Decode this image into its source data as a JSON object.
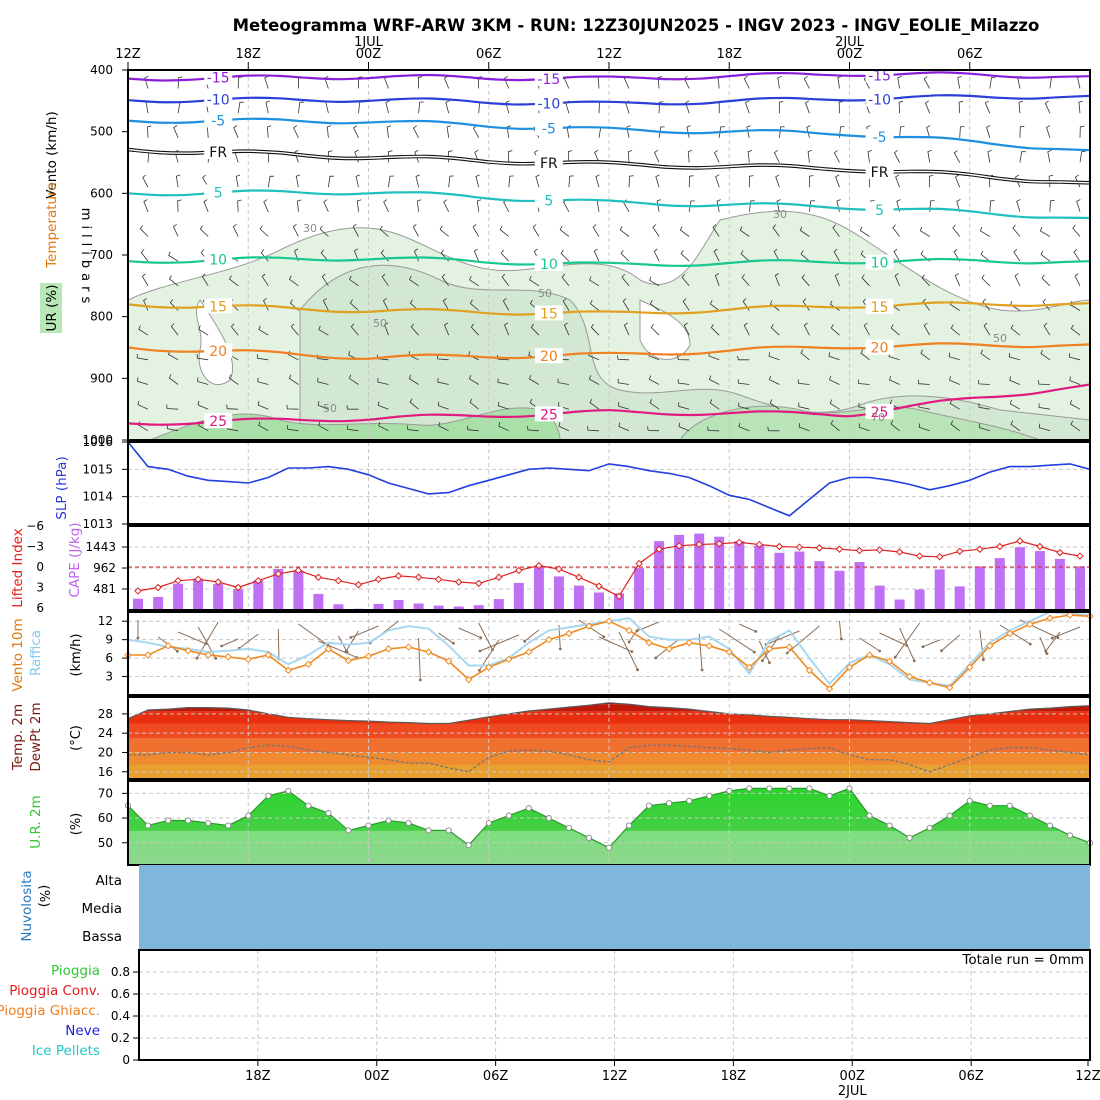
{
  "title": "Meteogramma WRF-ARW 3KM - RUN: 12Z30JUN2025 - INGV 2023 - INGV_EOLIE_Milazzo",
  "top_axis": {
    "ticks": [
      {
        "label": "12Z",
        "hour": 0
      },
      {
        "label": "18Z",
        "hour": 6
      },
      {
        "label": "00Z",
        "hour": 12,
        "date": "1JUL"
      },
      {
        "label": "06Z",
        "hour": 18
      },
      {
        "label": "12Z",
        "hour": 24
      },
      {
        "label": "18Z",
        "hour": 30
      },
      {
        "label": "00Z",
        "hour": 36,
        "date": "2JUL"
      },
      {
        "label": "06Z",
        "hour": 42
      }
    ]
  },
  "bottom_axis": {
    "ticks": [
      {
        "label": "18Z",
        "hour": 6
      },
      {
        "label": "00Z",
        "hour": 12
      },
      {
        "label": "06Z",
        "hour": 18
      },
      {
        "label": "12Z",
        "hour": 24
      },
      {
        "label": "18Z",
        "hour": 30
      },
      {
        "label": "00Z",
        "hour": 36,
        "date": "2JUL"
      },
      {
        "label": "06Z",
        "hour": 42
      },
      {
        "label": "12Z",
        "hour": 48
      }
    ]
  },
  "chart_data": [
    {
      "type": "heatmap",
      "panel": "upper-air",
      "ylabels": [
        "Vento (km/h)",
        "Temperatura",
        "UR (%)"
      ],
      "yaxis_label": "millibars",
      "yticks": [
        400,
        500,
        600,
        700,
        800,
        900,
        1000
      ],
      "ylim": [
        1000,
        400
      ],
      "xlim": [
        0,
        48
      ],
      "isotherm_labels": [
        "-15",
        "-10",
        "-5",
        "FR",
        "5",
        "10",
        "15",
        "20",
        "25"
      ],
      "isotherms": [
        {
          "label": "-15",
          "color": "#8a1ed8",
          "p": [
            [
              0,
              414
            ],
            [
              12,
              411
            ],
            [
              24,
              414
            ],
            [
              36,
              406
            ],
            [
              48,
              410
            ]
          ]
        },
        {
          "label": "-10",
          "color": "#2a3fd6",
          "p": [
            [
              0,
              449
            ],
            [
              12,
              448
            ],
            [
              24,
              455
            ],
            [
              36,
              446
            ],
            [
              48,
              442
            ]
          ]
        },
        {
          "label": "-5",
          "color": "#1e90e0",
          "p": [
            [
              0,
              482
            ],
            [
              12,
              483
            ],
            [
              24,
              497
            ],
            [
              36,
              503
            ],
            [
              48,
              530
            ]
          ]
        },
        {
          "label": "FR",
          "color": "#111111",
          "p": [
            [
              0,
              529
            ],
            [
              12,
              541
            ],
            [
              24,
              553
            ],
            [
              36,
              560
            ],
            [
              48,
              583
            ]
          ]
        },
        {
          "label": "5",
          "color": "#20c0c0",
          "p": [
            [
              0,
              600
            ],
            [
              12,
              598
            ],
            [
              24,
              615
            ],
            [
              36,
              622
            ],
            [
              48,
              640
            ]
          ]
        },
        {
          "label": "10",
          "color": "#18c890",
          "p": [
            [
              0,
              710
            ],
            [
              12,
              705
            ],
            [
              24,
              716
            ],
            [
              36,
              710
            ],
            [
              48,
              710
            ]
          ]
        },
        {
          "label": "15",
          "color": "#e0a020",
          "p": [
            [
              0,
              780
            ],
            [
              12,
              790
            ],
            [
              24,
              795
            ],
            [
              36,
              782
            ],
            [
              48,
              778
            ]
          ]
        },
        {
          "label": "20",
          "color": "#f08020",
          "p": [
            [
              0,
              850
            ],
            [
              12,
              866
            ],
            [
              24,
              862
            ],
            [
              36,
              848
            ],
            [
              48,
              845
            ]
          ]
        },
        {
          "label": "25",
          "color": "#e01a80",
          "p": [
            [
              0,
              973
            ],
            [
              12,
              965
            ],
            [
              24,
              955
            ],
            [
              36,
              958
            ],
            [
              48,
              910
            ]
          ]
        }
      ],
      "rh_contours": [
        "30",
        "50",
        "70"
      ]
    },
    {
      "type": "line",
      "panel": "slp",
      "ylabel": "SLP (hPa)",
      "yticks": [
        1013,
        1014,
        1015,
        1016
      ],
      "ylim": [
        1013,
        1016
      ],
      "x": [
        0,
        1,
        2,
        3,
        4,
        5,
        6,
        7,
        8,
        9,
        10,
        11,
        12,
        13,
        14,
        15,
        16,
        17,
        18,
        19,
        20,
        21,
        22,
        23,
        24,
        25,
        26,
        27,
        28,
        29,
        30,
        31,
        32,
        33,
        34,
        35,
        36,
        37,
        38,
        39,
        40,
        41,
        42,
        43,
        44,
        45,
        46,
        47,
        48
      ],
      "series": [
        {
          "color": "#2040e0",
          "values": [
            1016,
            1015.1,
            1015,
            1014.75,
            1014.6,
            1014.55,
            1014.5,
            1014.7,
            1015.05,
            1015.05,
            1015.1,
            1015.0,
            1014.8,
            1014.5,
            1014.3,
            1014.1,
            1014.15,
            1014.4,
            1014.6,
            1014.8,
            1015.0,
            1015.05,
            1015.0,
            1014.95,
            1015.2,
            1015.1,
            1014.95,
            1014.85,
            1014.7,
            1014.4,
            1014.05,
            1013.9,
            1013.6,
            1013.3,
            1013.9,
            1014.5,
            1014.7,
            1014.7,
            1014.6,
            1014.45,
            1014.25,
            1014.4,
            1014.6,
            1014.9,
            1015.1,
            1015.1,
            1015.15,
            1015.2,
            1015.0
          ]
        }
      ]
    },
    {
      "type": "bar",
      "panel": "cape-li",
      "ylabels": [
        "Lifted Index",
        "CAPE (J/kg)"
      ],
      "cape_ticks": [
        481,
        962,
        1443
      ],
      "li_ticks": [
        -6,
        -3,
        0,
        3,
        6
      ],
      "cape_ylim": [
        0,
        1925
      ],
      "li_ylim": [
        6,
        -6
      ],
      "x": [
        0,
        1,
        2,
        3,
        4,
        5,
        6,
        7,
        8,
        9,
        10,
        11,
        12,
        13,
        14,
        15,
        16,
        17,
        18,
        19,
        20,
        21,
        22,
        23,
        24,
        25,
        26,
        27,
        28,
        29,
        30,
        31,
        32,
        33,
        34,
        35,
        36,
        37,
        38,
        39,
        40,
        41,
        42,
        43,
        44,
        45,
        46,
        47
      ],
      "cape": [
        260,
        300,
        600,
        720,
        600,
        470,
        680,
        940,
        900,
        370,
        130,
        30,
        140,
        230,
        150,
        100,
        80,
        110,
        250,
        620,
        970,
        770,
        560,
        400,
        380,
        960,
        1580,
        1720,
        1750,
        1680,
        1580,
        1480,
        1310,
        1340,
        1120,
        900,
        1100,
        560,
        240,
        470,
        930,
        540,
        1000,
        1190,
        1440,
        1350,
        1170,
        1000
      ],
      "lifted_index": [
        3.5,
        3.0,
        2.0,
        1.8,
        2.2,
        3.0,
        2.0,
        1.0,
        0.5,
        1.5,
        2.0,
        2.6,
        1.8,
        1.3,
        1.5,
        1.8,
        2.2,
        2.4,
        1.5,
        0.5,
        -0.2,
        0.3,
        1.5,
        2.8,
        4.3,
        -0.5,
        -2.6,
        -3.1,
        -3.3,
        -3.4,
        -3.6,
        -3.3,
        -3.0,
        -2.9,
        -2.8,
        -2.6,
        -2.4,
        -2.5,
        -2.2,
        -1.6,
        -1.5,
        -2.3,
        -2.6,
        -3.0,
        -3.8,
        -3.0,
        -2.1,
        -1.6
      ]
    },
    {
      "type": "line",
      "panel": "wind10m",
      "ylabels": [
        "Vento 10m",
        "Raffica"
      ],
      "ylabel_unit": "(km/h)",
      "yticks": [
        3,
        6,
        9,
        12
      ],
      "ylim": [
        0,
        13.5
      ],
      "x": [
        0,
        1,
        2,
        3,
        4,
        5,
        6,
        7,
        8,
        9,
        10,
        11,
        12,
        13,
        14,
        15,
        16,
        17,
        18,
        19,
        20,
        21,
        22,
        23,
        24,
        25,
        26,
        27,
        28,
        29,
        30,
        31,
        32,
        33,
        34,
        35,
        36,
        37,
        38,
        39,
        40,
        41,
        42,
        43,
        44,
        45,
        46,
        47,
        48
      ],
      "series": [
        {
          "name": "Vento 10m",
          "color": "#f08a20",
          "values": [
            6.5,
            6.5,
            8.0,
            7.2,
            6.5,
            6.2,
            5.8,
            6.5,
            4.0,
            5.0,
            7.5,
            5.6,
            6.3,
            7.5,
            7.8,
            7.0,
            5.5,
            2.5,
            4.5,
            5.8,
            7.0,
            9.0,
            10.0,
            11.2,
            12.0,
            10.5,
            8.5,
            7.5,
            8.5,
            8.0,
            7.0,
            4.5,
            7.5,
            7.8,
            4.0,
            1.0,
            4.5,
            6.5,
            5.5,
            3.0,
            2.0,
            1.2,
            4.5,
            8.0,
            10.0,
            11.5,
            12.5,
            13.0,
            12.8
          ]
        },
        {
          "name": "Raffica",
          "color": "#a8d8f0",
          "values": [
            9.0,
            8.5,
            7.8,
            7.5,
            7.0,
            7.2,
            7.5,
            7.0,
            5.0,
            6.5,
            8.5,
            8.2,
            8.5,
            10.5,
            11.2,
            10.8,
            8.0,
            4.8,
            4.8,
            6.0,
            8.5,
            10.5,
            11.0,
            11.5,
            12.0,
            12.5,
            9.5,
            9.0,
            9.0,
            9.5,
            7.5,
            3.5,
            8.8,
            10.5,
            6.0,
            1.8,
            5.2,
            6.5,
            5.0,
            2.5,
            2.0,
            1.5,
            5.0,
            8.5,
            10.5,
            12.0,
            13.5,
            13.2,
            13.0
          ]
        }
      ]
    },
    {
      "type": "area",
      "panel": "temp2m",
      "ylabels": [
        "Temp. 2m",
        "DewPt 2m"
      ],
      "ylabel_unit": "(°C)",
      "yticks": [
        16,
        20,
        24,
        28
      ],
      "ylim": [
        14.5,
        31.5
      ],
      "x": [
        0,
        1,
        2,
        3,
        4,
        5,
        6,
        7,
        8,
        9,
        10,
        11,
        12,
        13,
        14,
        15,
        16,
        17,
        18,
        19,
        20,
        21,
        22,
        23,
        24,
        25,
        26,
        27,
        28,
        29,
        30,
        31,
        32,
        33,
        34,
        35,
        36,
        37,
        38,
        39,
        40,
        41,
        42,
        43,
        44,
        45,
        46,
        47,
        48
      ],
      "series": [
        {
          "name": "Temp. 2m",
          "color": "#5a5a5a",
          "values": [
            27.0,
            28.8,
            29.0,
            29.3,
            29.3,
            29.2,
            28.8,
            28.0,
            27.3,
            27.0,
            26.8,
            26.6,
            26.5,
            26.3,
            26.2,
            26.0,
            26.0,
            26.7,
            27.4,
            28.0,
            28.6,
            29.0,
            29.4,
            29.8,
            30.3,
            30.0,
            29.5,
            29.3,
            29.0,
            28.5,
            28.0,
            27.8,
            27.5,
            27.3,
            27.0,
            26.8,
            26.8,
            26.6,
            26.4,
            26.2,
            26.0,
            26.8,
            27.6,
            28.0,
            28.5,
            29.0,
            29.2,
            29.5,
            29.7
          ]
        },
        {
          "name": "DewPt 2m",
          "color": "#888888",
          "values": [
            19.5,
            19.5,
            20.0,
            20.0,
            19.5,
            20.0,
            21.0,
            21.5,
            21.3,
            20.5,
            20.0,
            19.5,
            19.0,
            18.5,
            17.8,
            17.8,
            16.8,
            16.0,
            19.0,
            20.3,
            20.5,
            20.3,
            19.5,
            18.5,
            18.0,
            21.0,
            21.5,
            21.5,
            21.3,
            21.0,
            20.8,
            20.5,
            20.0,
            20.5,
            20.8,
            21.0,
            19.5,
            18.5,
            18.5,
            17.5,
            16.0,
            17.5,
            19.0,
            20.5,
            21.0,
            21.0,
            20.5,
            20.0,
            19.5
          ]
        }
      ]
    },
    {
      "type": "area",
      "panel": "rh2m",
      "ylabel": "U.R. 2m",
      "ylabel_unit": "(%)",
      "yticks": [
        50,
        60,
        70
      ],
      "ylim": [
        41,
        75
      ],
      "x": [
        0,
        1,
        2,
        3,
        4,
        5,
        6,
        7,
        8,
        9,
        10,
        11,
        12,
        13,
        14,
        15,
        16,
        17,
        18,
        19,
        20,
        21,
        22,
        23,
        24,
        25,
        26,
        27,
        28,
        29,
        30,
        31,
        32,
        33,
        34,
        35,
        36,
        37,
        38,
        39,
        40,
        41,
        42,
        43,
        44,
        45,
        46,
        47,
        48
      ],
      "series": [
        {
          "name": "U.R. 2m",
          "color": "#32c832",
          "values": [
            65,
            57,
            59,
            59,
            58,
            57,
            61,
            69,
            71,
            65,
            62,
            55,
            57,
            59,
            58,
            55,
            55,
            49,
            58,
            61,
            64,
            60,
            56,
            52,
            48,
            57,
            65,
            66,
            67,
            69,
            71,
            72,
            72,
            72,
            72,
            69,
            72,
            61,
            57,
            52,
            56,
            61,
            67,
            65,
            65,
            61,
            57,
            53,
            50
          ]
        }
      ]
    },
    {
      "type": "table",
      "panel": "cloud",
      "ylabel": "Nuvolosita",
      "ylabel_unit": "(%)",
      "levels": [
        "Alta",
        "Media",
        "Bassa"
      ],
      "fill_color": "#7eb6dc"
    },
    {
      "type": "bar",
      "panel": "precip",
      "legend": [
        {
          "name": "Pioggia",
          "color": "#32c832"
        },
        {
          "name": "Pioggia Conv.",
          "color": "#e02020"
        },
        {
          "name": "Pioggia Ghiacc.",
          "color": "#f08020"
        },
        {
          "name": "Neve",
          "color": "#2020e0"
        },
        {
          "name": "Ice Pellets",
          "color": "#20c8c8"
        }
      ],
      "yticks": [
        "0",
        "0.2",
        "0.4",
        "0.6",
        "0.8"
      ],
      "ylim": [
        0,
        1
      ],
      "values": [],
      "total_label": "Totale run = 0mm"
    }
  ]
}
